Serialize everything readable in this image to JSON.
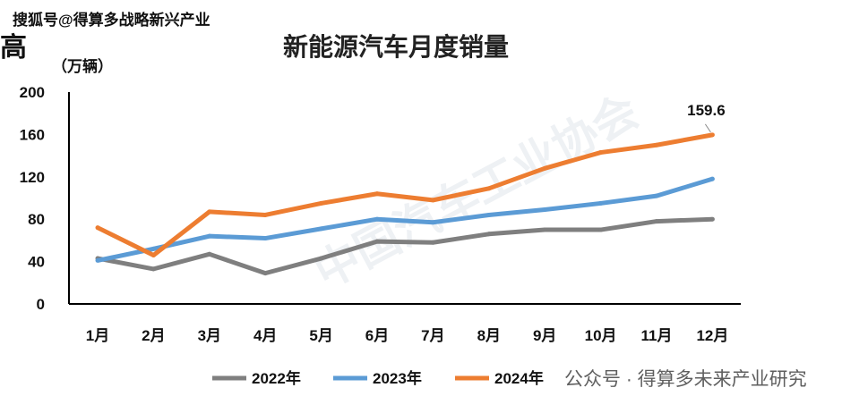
{
  "watermarks": {
    "top": "搜狐号@得算多战略新兴产业",
    "left": "高",
    "bottom": "公众号 · 得算多未来产业研究",
    "background": "中国汽车工业协会"
  },
  "chart_data": {
    "type": "line",
    "title": "新能源汽车月度销量",
    "ylabel": "（万辆）",
    "xlabel": "",
    "ylim": [
      0,
      200
    ],
    "yticks": [
      0,
      40,
      80,
      120,
      160,
      200
    ],
    "categories": [
      "1月",
      "2月",
      "3月",
      "4月",
      "5月",
      "6月",
      "7月",
      "8月",
      "9月",
      "10月",
      "11月",
      "12月"
    ],
    "grid": false,
    "legend_position": "bottom",
    "series": [
      {
        "name": "2022年",
        "color": "#7f7f7f",
        "values": [
          43,
          33,
          47,
          29,
          43,
          59,
          58,
          66,
          70,
          70,
          78,
          80
        ]
      },
      {
        "name": "2023年",
        "color": "#5b9bd5",
        "values": [
          41,
          52,
          64,
          62,
          71,
          80,
          77,
          84,
          89,
          95,
          102,
          118
        ]
      },
      {
        "name": "2024年",
        "color": "#ed7d31",
        "values": [
          72,
          46,
          87,
          84,
          95,
          104,
          98,
          109,
          128,
          143,
          150,
          159.6
        ]
      }
    ],
    "annotations": [
      {
        "series": "2024年",
        "category": "12月",
        "text": "159.6"
      }
    ]
  }
}
